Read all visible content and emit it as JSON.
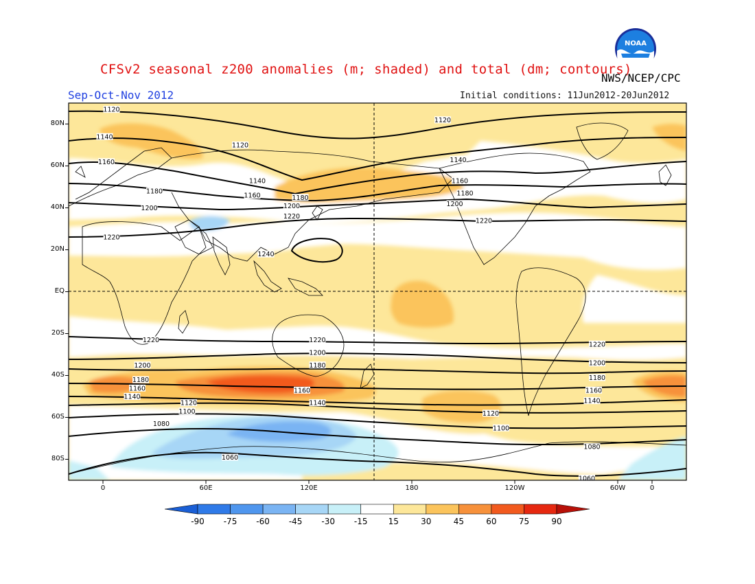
{
  "header": {
    "title": "CFSv2 seasonal z200 anomalies (m; shaded) and total (dm; contours)",
    "agency": "NWS/NCEP/CPC",
    "season": "Sep-Oct-Nov 2012",
    "initial_conditions": "Initial conditions: 11Jun2012-20Jun2012",
    "logo_text": "NOAA"
  },
  "axes": {
    "lat_labels": [
      "80N",
      "60N",
      "40N",
      "20N",
      "EQ",
      "20S",
      "40S",
      "60S",
      "80S"
    ],
    "lon_labels": [
      "0",
      "60E",
      "120E",
      "180",
      "120W",
      "60W",
      "0"
    ]
  },
  "colorbar": {
    "labels": [
      "-90",
      "-75",
      "-60",
      "-45",
      "-30",
      "-15",
      "15",
      "30",
      "45",
      "60",
      "75",
      "90"
    ],
    "colors": [
      "#1a5fd6",
      "#2f7ae8",
      "#4f96ee",
      "#7ab4f3",
      "#a7d6f6",
      "#c8f0f8",
      "#ffffff",
      "#fde79a",
      "#fbc45c",
      "#f7913b",
      "#f25a1e",
      "#e62810",
      "#b81008"
    ]
  },
  "contours": {
    "labels": [
      {
        "text": "1120",
        "lat": 87,
        "lon": 5
      },
      {
        "text": "1140",
        "lat": 74,
        "lon": 1
      },
      {
        "text": "1160",
        "lat": 62,
        "lon": 2
      },
      {
        "text": "1120",
        "lat": 70,
        "lon": 80
      },
      {
        "text": "1180",
        "lat": 48,
        "lon": 30
      },
      {
        "text": "1200",
        "lat": 40,
        "lon": 27
      },
      {
        "text": "1220",
        "lat": 26,
        "lon": 5
      },
      {
        "text": "1140",
        "lat": 53,
        "lon": 90
      },
      {
        "text": "1160",
        "lat": 46,
        "lon": 87
      },
      {
        "text": "1180",
        "lat": 45,
        "lon": 115
      },
      {
        "text": "1200",
        "lat": 41,
        "lon": 110
      },
      {
        "text": "1220",
        "lat": 36,
        "lon": 110
      },
      {
        "text": "1240",
        "lat": 18,
        "lon": 95
      },
      {
        "text": "1120",
        "lat": 82,
        "lon": -162
      },
      {
        "text": "1140",
        "lat": 63,
        "lon": -153
      },
      {
        "text": "1160",
        "lat": 53,
        "lon": -152
      },
      {
        "text": "1180",
        "lat": 47,
        "lon": -149
      },
      {
        "text": "1200",
        "lat": 42,
        "lon": -155
      },
      {
        "text": "1220",
        "lat": 34,
        "lon": -138
      },
      {
        "text": "1220",
        "lat": -23,
        "lon": 28
      },
      {
        "text": "1200",
        "lat": -35,
        "lon": 23
      },
      {
        "text": "1180",
        "lat": -42,
        "lon": 22
      },
      {
        "text": "1160",
        "lat": -46,
        "lon": 20
      },
      {
        "text": "1140",
        "lat": -50,
        "lon": 17
      },
      {
        "text": "1120",
        "lat": -53,
        "lon": 50
      },
      {
        "text": "1100",
        "lat": -57,
        "lon": 49
      },
      {
        "text": "1080",
        "lat": -63,
        "lon": 34
      },
      {
        "text": "1060",
        "lat": -79,
        "lon": 74
      },
      {
        "text": "1220",
        "lat": -23,
        "lon": 125
      },
      {
        "text": "1200",
        "lat": -29,
        "lon": 125
      },
      {
        "text": "1180",
        "lat": -35,
        "lon": 125
      },
      {
        "text": "1160",
        "lat": -47,
        "lon": 116
      },
      {
        "text": "1140",
        "lat": -53,
        "lon": 125
      },
      {
        "text": "1120",
        "lat": -58,
        "lon": -134
      },
      {
        "text": "1100",
        "lat": -65,
        "lon": -128
      },
      {
        "text": "1220",
        "lat": -25,
        "lon": -72
      },
      {
        "text": "1200",
        "lat": -34,
        "lon": -72
      },
      {
        "text": "1180",
        "lat": -41,
        "lon": -72
      },
      {
        "text": "1160",
        "lat": -47,
        "lon": -74
      },
      {
        "text": "1140",
        "lat": -52,
        "lon": -75
      },
      {
        "text": "1080",
        "lat": -74,
        "lon": -75
      },
      {
        "text": "1060",
        "lat": -89,
        "lon": -78
      }
    ]
  }
}
